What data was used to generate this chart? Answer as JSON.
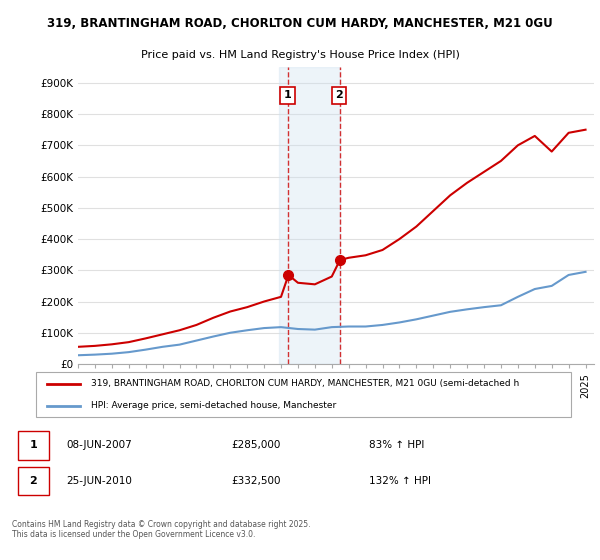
{
  "title1": "319, BRANTINGHAM ROAD, CHORLTON CUM HARDY, MANCHESTER, M21 0GU",
  "title2": "Price paid vs. HM Land Registry's House Price Index (HPI)",
  "ylabel_ticks": [
    "£0",
    "£100K",
    "£200K",
    "£300K",
    "£400K",
    "£500K",
    "£600K",
    "£700K",
    "£800K",
    "£900K"
  ],
  "ytick_vals": [
    0,
    100000,
    200000,
    300000,
    400000,
    500000,
    600000,
    700000,
    800000,
    900000
  ],
  "ylim": [
    0,
    950000
  ],
  "xlim_start": 1995,
  "xlim_end": 2025.5,
  "background_color": "#ffffff",
  "plot_bg_color": "#ffffff",
  "grid_color": "#e0e0e0",
  "transaction1": {
    "date": 2007.44,
    "price": 285000,
    "label": "1"
  },
  "transaction2": {
    "date": 2010.48,
    "price": 332500,
    "label": "2"
  },
  "shade_x1_start": 2006.9,
  "shade_x1_end": 2007.44,
  "shade_x2_start": 2007.44,
  "shade_x2_end": 2010.48,
  "legend1_text": "319, BRANTINGHAM ROAD, CHORLTON CUM HARDY, MANCHESTER, M21 0GU (semi-detached h",
  "legend2_text": "HPI: Average price, semi-detached house, Manchester",
  "note1": "1     08-JUN-2007          £285,000          83% ↑ HPI",
  "note2": "2     25-JUN-2010          £332,500          132% ↑ HPI",
  "footnote": "Contains HM Land Registry data © Crown copyright and database right 2025.\nThis data is licensed under the Open Government Licence v3.0.",
  "line_color_red": "#cc0000",
  "line_color_blue": "#6699cc",
  "shade_color": "#cce0f0",
  "vline_color": "#cc0000",
  "hpi_years": [
    1995,
    1996,
    1997,
    1998,
    1999,
    2000,
    2001,
    2002,
    2003,
    2004,
    2005,
    2006,
    2007,
    2008,
    2009,
    2010,
    2011,
    2012,
    2013,
    2014,
    2015,
    2016,
    2017,
    2018,
    2019,
    2020,
    2021,
    2022,
    2023,
    2024,
    2025
  ],
  "hpi_values": [
    28000,
    30000,
    33000,
    38000,
    46000,
    55000,
    62000,
    75000,
    88000,
    100000,
    108000,
    115000,
    118000,
    112000,
    110000,
    118000,
    120000,
    120000,
    125000,
    133000,
    143000,
    155000,
    167000,
    175000,
    182000,
    188000,
    215000,
    240000,
    250000,
    285000,
    295000
  ],
  "property_years": [
    1995,
    1996,
    1997,
    1998,
    1999,
    2000,
    2001,
    2002,
    2003,
    2004,
    2005,
    2006,
    2007.0,
    2007.44,
    2008,
    2009,
    2010.0,
    2010.48,
    2011,
    2012,
    2013,
    2014,
    2015,
    2016,
    2017,
    2018,
    2019,
    2020,
    2021,
    2022,
    2023,
    2024,
    2025
  ],
  "property_values": [
    55000,
    58000,
    63000,
    70000,
    82000,
    95000,
    108000,
    125000,
    148000,
    168000,
    182000,
    200000,
    215000,
    285000,
    260000,
    255000,
    280000,
    332500,
    340000,
    348000,
    365000,
    400000,
    440000,
    490000,
    540000,
    580000,
    615000,
    650000,
    700000,
    730000,
    680000,
    740000,
    750000
  ]
}
